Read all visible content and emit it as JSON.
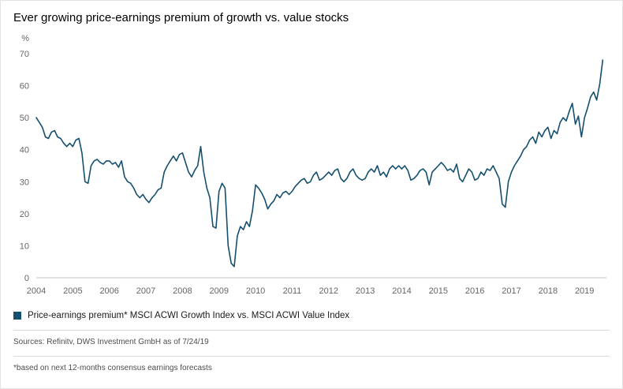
{
  "title": "Ever growing price-earnings premium of growth vs. value stocks",
  "legend": {
    "label": "Price-earnings premium* MSCI ACWI Growth Index vs. MSCI ACWI Value Index",
    "marker_color": "#14506e"
  },
  "footer": {
    "sources": "Sources: Refinitv, DWS Investment GmbH as of 7/24/19",
    "footnote": "*based on next 12-months consensus earnings forecasts"
  },
  "chart_data": {
    "type": "line",
    "title": "Ever growing price-earnings premium of growth vs. value stocks",
    "xlabel": "",
    "ylabel": "%",
    "ylim": [
      0,
      70
    ],
    "yticks": [
      0,
      10,
      20,
      30,
      40,
      50,
      60,
      70
    ],
    "xticks": [
      2004,
      2005,
      2006,
      2007,
      2008,
      2009,
      2010,
      2011,
      2012,
      2013,
      2014,
      2015,
      2016,
      2017,
      2018,
      2019
    ],
    "x_range": [
      2004,
      2019.6
    ],
    "grid": false,
    "legend_position": "bottom-left",
    "series": [
      {
        "name": "Price-earnings premium* MSCI ACWI Growth Index vs. MSCI ACWI Value Index",
        "color": "#14506e",
        "x_start": 2004.0,
        "x_step": 0.08333,
        "values": [
          50,
          48.5,
          47,
          44,
          43.5,
          45.5,
          46,
          44,
          43.5,
          42,
          41,
          42,
          41,
          43,
          43.5,
          39,
          30,
          29.5,
          35,
          36.5,
          37,
          36,
          35.5,
          36.5,
          36.5,
          35.5,
          36,
          34.5,
          36.5,
          31.5,
          30,
          29.5,
          28,
          26,
          25,
          26,
          24.5,
          23.5,
          25,
          26,
          27.5,
          28,
          33,
          35,
          36.5,
          38,
          36.5,
          38.5,
          39,
          36,
          33,
          31.5,
          33.5,
          35,
          41,
          33,
          28,
          25,
          16,
          15.5,
          27,
          29.5,
          28,
          10,
          4.5,
          3.5,
          13,
          16,
          15,
          17.5,
          16,
          21,
          29,
          28,
          26.5,
          24.5,
          21.5,
          23,
          24,
          26,
          25,
          26.5,
          27,
          26,
          27,
          28.5,
          29.5,
          30.5,
          31,
          29.5,
          30,
          32,
          33,
          30.5,
          31,
          32,
          33,
          32,
          33.5,
          34,
          31,
          30,
          31,
          33,
          34,
          32,
          31,
          30.5,
          31,
          33,
          34,
          33,
          35,
          32,
          33,
          31.5,
          34,
          35,
          34,
          35,
          34,
          35,
          33.5,
          30.5,
          31,
          32,
          33.5,
          34,
          33,
          29,
          33,
          34,
          35,
          36,
          35,
          33.5,
          34,
          33,
          35.5,
          31,
          30,
          32,
          34,
          33,
          30.5,
          31,
          33,
          32,
          34,
          33.5,
          35,
          33,
          31,
          23,
          22,
          30,
          33,
          35,
          36.5,
          38,
          40,
          41,
          43,
          44,
          42,
          45.5,
          44,
          46,
          47,
          43.5,
          46,
          45,
          48.5,
          50,
          49,
          52,
          54.5,
          48,
          50.5,
          44,
          50,
          53,
          56.5,
          58,
          55.5,
          60.5,
          68
        ]
      }
    ]
  }
}
